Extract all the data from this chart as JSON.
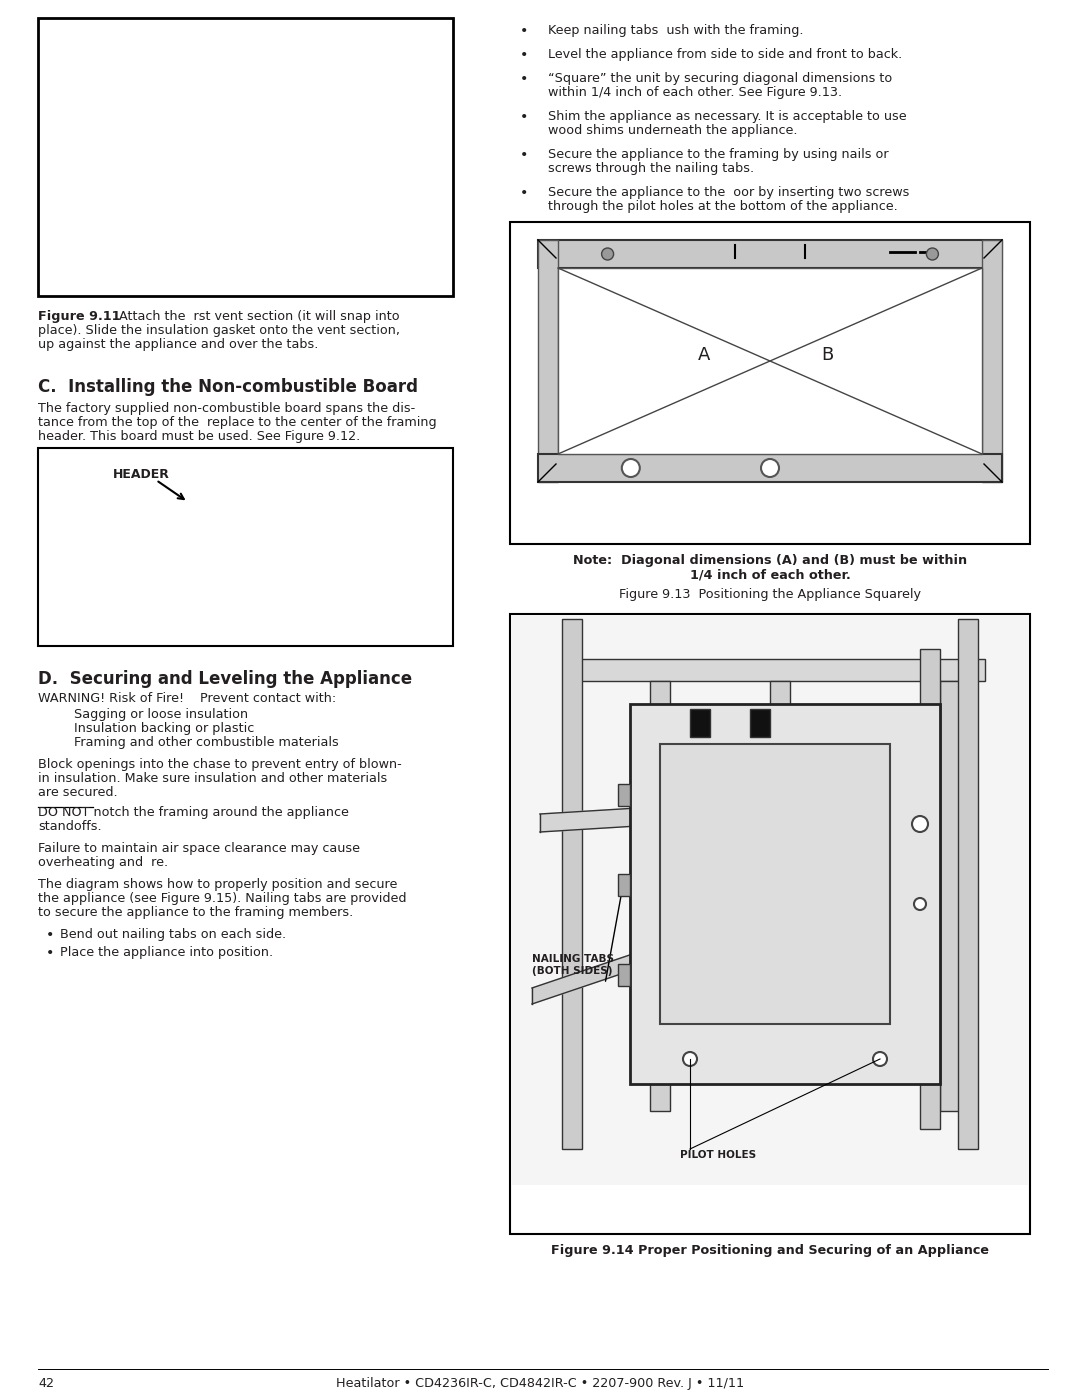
{
  "page_number": "42",
  "footer_text": "Heatilator • CD4236IR-C, CD4842IR-C • 2207-900 Rev. J • 11/11",
  "section_c_title": "C.  Installing the Non-combustible Board",
  "section_c_text1": "The factory supplied non-combustible board spans the dis-",
  "section_c_text2": "tance from the top of the  replace to the center of the framing",
  "section_c_text3": "header. This board must be used. See Figure 9.12.",
  "header_label": "HEADER",
  "section_d_title": "D.  Securing and Leveling the Appliance",
  "warning_line1": "WARNING! Risk of Fire!    Prevent contact with:",
  "warning_items": [
    "Sagging or loose insulation",
    "Insulation backing or plastic",
    "Framing and other combustible materials"
  ],
  "block_line1": "Block openings into the chase to prevent entry of blown-",
  "block_line2": "in insulation. Make sure insulation and other materials",
  "block_line3": "are secured.",
  "do_not_line1": "DO NOT notch the framing around the appliance",
  "do_not_line2": "standoffs.",
  "do_not_underline": "DO NOT",
  "failure_line1": "Failure to maintain air space clearance may cause",
  "failure_line2": "overheating and  re.",
  "diagram_line1": "The diagram shows how to properly position and secure",
  "diagram_line2": "the appliance (see Figure 9.15). Nailing tabs are provided",
  "diagram_line3": "to secure the appliance to the framing members.",
  "bullet1": "Bend out nailing tabs on each side.",
  "bullet2": "Place the appliance into position.",
  "fig911_bold": "Figure 9.11",
  "fig911_rest": "  Attach the  rst vent section (it will snap into",
  "fig911_line2": "place). Slide the insulation gasket onto the vent section,",
  "fig911_line3": "up against the appliance and over the tabs.",
  "right_bullets": [
    "Keep nailing tabs  ush with the framing.",
    "Level the appliance from side to side and front to back.",
    "“Square” the unit by securing diagonal dimensions to\nwithin 1/4 inch of each other. See Figure 9.13.",
    "Shim the appliance as necessary. It is acceptable to use\nwood shims underneath the appliance.",
    "Secure the appliance to the framing by using nails or\nscrews through the nailing tabs.",
    "Secure the appliance to the  oor by inserting two screws\nthrough the pilot holes at the bottom of the appliance."
  ],
  "fig913_note_bold": "Note:  Diagonal dimensions (A) and (B) must be within",
  "fig913_note_line2": "1/4 inch of each other.",
  "fig913_caption": "Figure 9.13  Positioning the Appliance Squarely",
  "fig914_label1_line1": "NAILING TABS",
  "fig914_label1_line2": "(BOTH SIDES)",
  "fig914_label2": "PILOT HOLES",
  "fig914_caption": "Figure 9.14 Proper Positioning and Securing of an Appliance",
  "bg_color": "#ffffff",
  "text_color": "#231f20"
}
